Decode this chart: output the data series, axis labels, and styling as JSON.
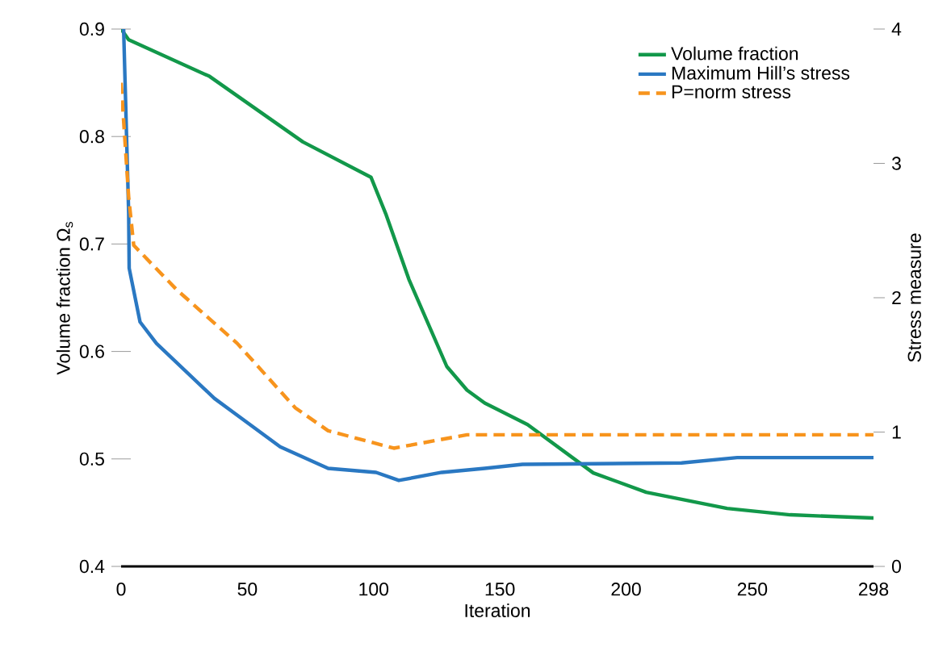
{
  "chart_data": {
    "type": "line",
    "xlabel": "Iteration",
    "ylabel": "Volume fraction Ω$_{s}$",
    "y2label": "Stress measure",
    "xlim": [
      0,
      298
    ],
    "xticks": [
      0,
      50,
      100,
      150,
      200,
      250,
      298
    ],
    "ylim": [
      0.4,
      0.9
    ],
    "yticks": [
      0.4,
      0.5,
      0.6,
      0.7,
      0.8,
      0.9
    ],
    "y2lim": [
      0,
      4
    ],
    "y2ticks": [
      0,
      1,
      2,
      3,
      4
    ],
    "legend": "top right",
    "series": [
      {
        "name": "Volume fraction",
        "color": "#12984a",
        "axis": "y",
        "line_style": "solid",
        "x": [
          0,
          3,
          35,
          72,
          99,
          105,
          114,
          129,
          137,
          144,
          161,
          187,
          208,
          240,
          265,
          298
        ],
        "values": [
          0.9,
          0.89,
          0.856,
          0.795,
          0.762,
          0.727,
          0.667,
          0.586,
          0.564,
          0.552,
          0.532,
          0.487,
          0.469,
          0.454,
          0.448,
          0.445
        ]
      },
      {
        "name": "Maximum Hill’s stress",
        "color": "#2a78c2",
        "axis": "y2",
        "line_style": "solid",
        "x": [
          1,
          3,
          3.2,
          7.5,
          14,
          37,
          63,
          82,
          101,
          110,
          127,
          144,
          159,
          222,
          244,
          298
        ],
        "values": [
          4.0,
          2.63,
          2.22,
          1.82,
          1.66,
          1.25,
          0.89,
          0.73,
          0.7,
          0.64,
          0.7,
          0.73,
          0.76,
          0.77,
          0.81,
          0.81
        ]
      },
      {
        "name": "P=norm stress",
        "color": "#f7941d",
        "axis": "y2",
        "line_style": "dashed",
        "x": [
          0,
          3,
          5,
          22,
          46,
          69,
          82,
          108,
          137,
          144,
          201,
          298
        ],
        "values": [
          3.6,
          2.75,
          2.39,
          2.06,
          1.66,
          1.18,
          1.01,
          0.88,
          0.98,
          0.98,
          0.98,
          0.98
        ]
      }
    ]
  }
}
